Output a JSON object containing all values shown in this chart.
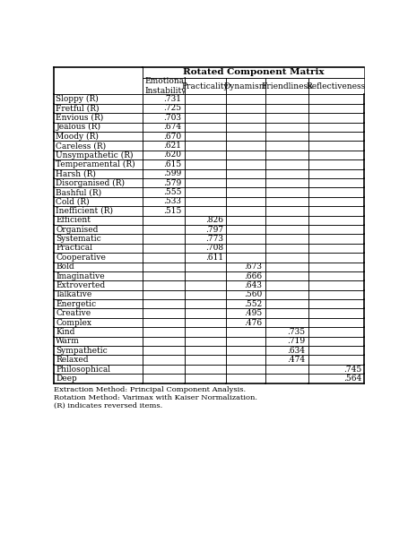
{
  "title": "Rotated Component Matrix",
  "col_headers": [
    "Emotional\nInstability",
    "Practicality",
    "Dynamism",
    "Friendliness",
    "Reflectiveness"
  ],
  "rows": [
    [
      "Sloppy (R)",
      ".731",
      "",
      "",
      "",
      ""
    ],
    [
      "Fretful (R)",
      ".725",
      "",
      "",
      "",
      ""
    ],
    [
      "Envious (R)",
      ".703",
      "",
      "",
      "",
      ""
    ],
    [
      "Jealous (R)",
      ".674",
      "",
      "",
      "",
      ""
    ],
    [
      "Moody (R)",
      ".670",
      "",
      "",
      "",
      ""
    ],
    [
      "Careless (R)",
      ".621",
      "",
      "",
      "",
      ""
    ],
    [
      "Unsympathetic (R)",
      ".620",
      "",
      "",
      "",
      ""
    ],
    [
      "Temperamental (R)",
      ".615",
      "",
      "",
      "",
      ""
    ],
    [
      "Harsh (R)",
      ".599",
      "",
      "",
      "",
      ""
    ],
    [
      "Disorganised (R)",
      ".579",
      "",
      "",
      "",
      ""
    ],
    [
      "Bashful (R)",
      ".555",
      "",
      "",
      "",
      ""
    ],
    [
      "Cold (R)",
      ".533",
      "",
      "",
      "",
      ""
    ],
    [
      "Inefficient (R)",
      ".515",
      "",
      "",
      "",
      ""
    ],
    [
      "Efficient",
      "",
      ".826",
      "",
      "",
      ""
    ],
    [
      "Organised",
      "",
      ".797",
      "",
      "",
      ""
    ],
    [
      "Systematic",
      "",
      ".773",
      "",
      "",
      ""
    ],
    [
      "Practical",
      "",
      ".708",
      "",
      "",
      ""
    ],
    [
      "Cooperative",
      "",
      ".611",
      "",
      "",
      ""
    ],
    [
      "Bold",
      "",
      "",
      ".673",
      "",
      ""
    ],
    [
      "Imaginative",
      "",
      "",
      ".666",
      "",
      ""
    ],
    [
      "Extroverted",
      "",
      "",
      ".643",
      "",
      ""
    ],
    [
      "Talkative",
      "",
      "",
      ".560",
      "",
      ""
    ],
    [
      "Energetic",
      "",
      "",
      ".552",
      "",
      ""
    ],
    [
      "Creative",
      "",
      "",
      ".495",
      "",
      ""
    ],
    [
      "Complex",
      "",
      "",
      ".476",
      "",
      ""
    ],
    [
      "Kind",
      "",
      "",
      "",
      ".735",
      ""
    ],
    [
      "Warm",
      "",
      "",
      "",
      ".719",
      ""
    ],
    [
      "Sympathetic",
      "",
      "",
      "",
      ".634",
      ""
    ],
    [
      "Relaxed",
      "",
      "",
      "",
      ".474",
      ""
    ],
    [
      "Philosophical",
      "",
      "",
      "",
      "",
      ".745"
    ],
    [
      "Deep",
      "",
      "",
      "",
      "",
      ".564"
    ]
  ],
  "footnotes": [
    "Extraction Method: Principal Component Analysis.",
    "Rotation Method: Varimax with Kaiser Normalization.",
    "(R) indicates reversed items."
  ],
  "background_color": "#ffffff",
  "font_size": 6.5,
  "header_font_size": 6.5,
  "title_font_size": 7.5,
  "footnote_font_size": 6.0
}
